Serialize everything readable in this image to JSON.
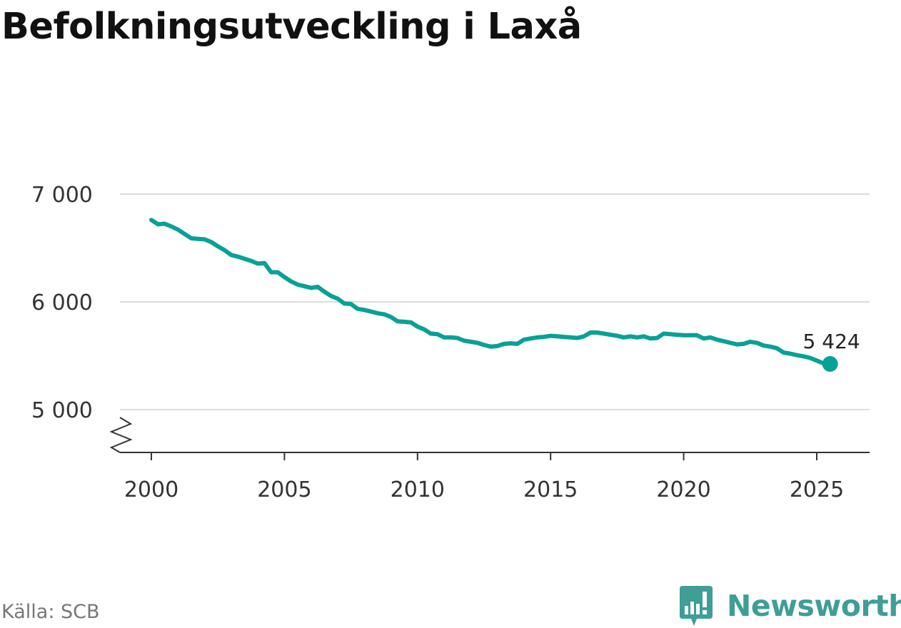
{
  "title": "Befolkningsutveckling i Laxå",
  "source": "Källa: SCB",
  "brand": {
    "name": "Newsworthy",
    "icon": "newsworthy-logo-icon",
    "color": "#3f9e95"
  },
  "colors": {
    "line": "#08a195",
    "grid": "#dddddd",
    "axis": "#333333"
  },
  "chart_data": {
    "type": "line",
    "title": "Befolkningsutveckling i Laxå",
    "xlabel": "",
    "ylabel": "",
    "xlim": [
      1999.4,
      2027.0
    ],
    "ylim": [
      4600,
      7000
    ],
    "x_ticks": [
      2000,
      2005,
      2010,
      2015,
      2020,
      2025
    ],
    "x_tick_labels": [
      "2000",
      "2005",
      "2010",
      "2015",
      "2020",
      "2025"
    ],
    "y_ticks": [
      5000,
      6000,
      7000
    ],
    "y_tick_labels": [
      "5 000",
      "6 000",
      "7 000"
    ],
    "y_axis_break": true,
    "grid": "horizontal",
    "legend": "none",
    "end_label": "5 424",
    "series": [
      {
        "color": "#08a195",
        "x": [
          2000.0,
          2000.25,
          2000.5,
          2000.75,
          2001.0,
          2001.25,
          2001.5,
          2001.75,
          2002.0,
          2002.25,
          2002.5,
          2002.75,
          2003.0,
          2003.25,
          2003.5,
          2003.75,
          2004.0,
          2004.25,
          2004.5,
          2004.75,
          2005.0,
          2005.25,
          2005.5,
          2005.75,
          2006.0,
          2006.25,
          2006.5,
          2006.75,
          2007.0,
          2007.25,
          2007.5,
          2007.75,
          2008.0,
          2008.25,
          2008.5,
          2008.75,
          2009.0,
          2009.25,
          2009.5,
          2009.75,
          2010.0,
          2010.25,
          2010.5,
          2010.75,
          2011.0,
          2011.25,
          2011.5,
          2011.75,
          2012.0,
          2012.25,
          2012.5,
          2012.75,
          2013.0,
          2013.25,
          2013.5,
          2013.75,
          2014.0,
          2014.25,
          2014.5,
          2014.75,
          2015.0,
          2015.25,
          2015.5,
          2015.75,
          2016.0,
          2016.25,
          2016.5,
          2016.75,
          2017.0,
          2017.25,
          2017.5,
          2017.75,
          2018.0,
          2018.25,
          2018.5,
          2018.75,
          2019.0,
          2019.25,
          2019.5,
          2019.75,
          2020.0,
          2020.25,
          2020.5,
          2020.75,
          2021.0,
          2021.25,
          2021.5,
          2021.75,
          2022.0,
          2022.25,
          2022.5,
          2022.75,
          2023.0,
          2023.25,
          2023.5,
          2023.75,
          2024.0,
          2024.25,
          2024.5,
          2024.75,
          2025.0,
          2025.25,
          2025.5
        ],
        "values": [
          6760,
          6720,
          6725,
          6700,
          6670,
          6630,
          6590,
          6585,
          6580,
          6555,
          6515,
          6480,
          6435,
          6420,
          6400,
          6380,
          6355,
          6360,
          6275,
          6275,
          6230,
          6190,
          6160,
          6145,
          6130,
          6140,
          6095,
          6055,
          6030,
          5985,
          5980,
          5935,
          5925,
          5910,
          5895,
          5885,
          5860,
          5820,
          5815,
          5810,
          5770,
          5745,
          5705,
          5700,
          5670,
          5670,
          5665,
          5640,
          5630,
          5620,
          5600,
          5585,
          5590,
          5610,
          5615,
          5610,
          5650,
          5660,
          5670,
          5675,
          5685,
          5680,
          5675,
          5670,
          5665,
          5680,
          5715,
          5715,
          5705,
          5695,
          5685,
          5670,
          5680,
          5670,
          5680,
          5660,
          5665,
          5705,
          5700,
          5695,
          5690,
          5690,
          5690,
          5660,
          5670,
          5650,
          5635,
          5620,
          5605,
          5610,
          5630,
          5620,
          5595,
          5585,
          5570,
          5530,
          5520,
          5505,
          5495,
          5480,
          5455,
          5430,
          5424
        ]
      }
    ]
  }
}
